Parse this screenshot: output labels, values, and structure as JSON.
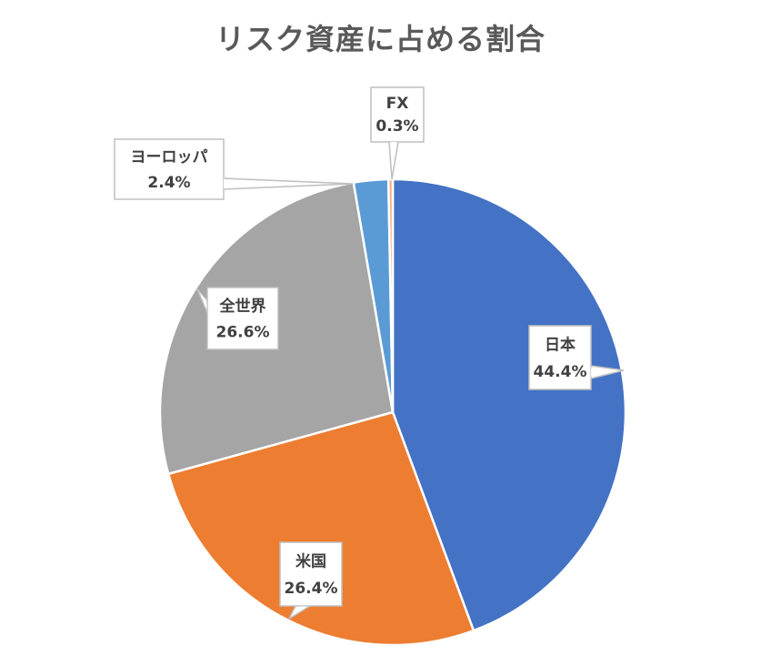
{
  "chart_data": {
    "type": "pie",
    "title": "リスク資産に占める割合",
    "slices": [
      {
        "label": "日本",
        "value": 44.4,
        "value_label": "44.4%",
        "color": "#4472C4"
      },
      {
        "label": "米国",
        "value": 26.4,
        "value_label": "26.4%",
        "color": "#ED7D31"
      },
      {
        "label": "全世界",
        "value": 26.6,
        "value_label": "26.6%",
        "color": "#A5A5A5"
      },
      {
        "label": "ヨーロッパ",
        "value": 2.4,
        "value_label": "2.4%",
        "color": "#5B9BD5"
      },
      {
        "label": "FX",
        "value": 0.3,
        "value_label": "0.3%",
        "color": "#F4B183"
      }
    ],
    "start_angle_deg": 0,
    "direction": "clockwise",
    "legend": "none",
    "data_labels": "callouts"
  }
}
